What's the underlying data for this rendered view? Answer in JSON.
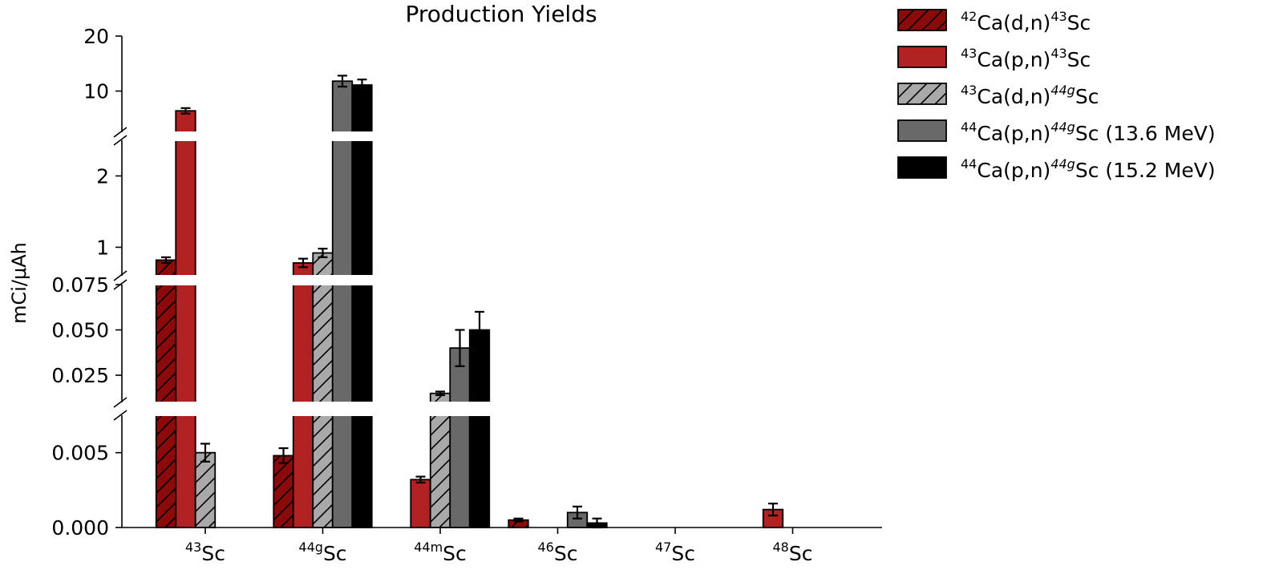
{
  "chart_data": {
    "type": "bar",
    "title": "Production Yields",
    "ylabel": "mCi/μAh",
    "xlabel": "",
    "categories": [
      {
        "base": "Sc",
        "sup": "43"
      },
      {
        "base": "Sc",
        "sup": "44g"
      },
      {
        "base": "Sc",
        "sup": "44m"
      },
      {
        "base": "Sc",
        "sup": "46"
      },
      {
        "base": "Sc",
        "sup": "47"
      },
      {
        "base": "Sc",
        "sup": "48"
      }
    ],
    "y_scale": "broken axis with four segments",
    "y_segments": [
      {
        "range": [
          0,
          0.0075
        ],
        "ticks": [
          "0.000",
          "0.005"
        ]
      },
      {
        "range": [
          0.01,
          0.075
        ],
        "ticks": [
          "0.025",
          "0.050",
          "0.075"
        ]
      },
      {
        "range": [
          0.6,
          2.5
        ],
        "ticks": [
          "1",
          "2"
        ]
      },
      {
        "range": [
          2.5,
          20
        ],
        "ticks": [
          "10",
          "20"
        ]
      }
    ],
    "legend_position": "top-right, outside the plot",
    "series": [
      {
        "name": "42Ca(d,n)43Sc",
        "legend": {
          "pre": "42",
          "a": "Ca(d,n)",
          "sup2": "43",
          "b": "Sc",
          "c": ""
        },
        "color": "#8b0a0a",
        "hatch": true,
        "values": [
          0.82,
          0.0048,
          0.0,
          0.0005,
          0.0,
          0.0
        ],
        "errors": [
          0.04,
          0.0005,
          0.0,
          0.0001,
          0.0,
          0.0
        ]
      },
      {
        "name": "43Ca(p,n)43Sc",
        "legend": {
          "pre": "43",
          "a": "Ca(p,n)",
          "sup2": "43",
          "b": "Sc",
          "c": ""
        },
        "color": "#b22222",
        "hatch": false,
        "values": [
          6.4,
          0.78,
          0.0032,
          0.0,
          0.0,
          0.0012
        ],
        "errors": [
          0.5,
          0.06,
          0.0002,
          0.0,
          0.0,
          0.0004
        ]
      },
      {
        "name": "43Ca(d,n)44gSc",
        "legend": {
          "pre": "43",
          "a": "Ca(d,n)",
          "sup2": "44g",
          "b": "Sc",
          "c": ""
        },
        "color": "#a9a9a9",
        "hatch": true,
        "values": [
          0.005,
          0.92,
          0.015,
          0.0,
          0.0,
          0.0
        ],
        "errors": [
          0.0006,
          0.06,
          0.001,
          0.0,
          0.0,
          0.0
        ]
      },
      {
        "name": "44Ca(p,n)44gSc (13.6 MeV)",
        "legend": {
          "pre": "44",
          "a": "Ca(p,n)",
          "sup2": "44g",
          "b": "Sc",
          "c": " (13.6 MeV)"
        },
        "color": "#696969",
        "hatch": false,
        "values": [
          0.0,
          11.8,
          0.04,
          0.001,
          0.0,
          0.0
        ],
        "errors": [
          0.0,
          1.0,
          0.01,
          0.0004,
          0.0,
          0.0
        ]
      },
      {
        "name": "44Ca(p,n)44gSc (15.2 MeV)",
        "legend": {
          "pre": "44",
          "a": "Ca(p,n)",
          "sup2": "44g",
          "b": "Sc",
          "c": " (15.2 MeV)"
        },
        "color": "#000000",
        "hatch": false,
        "values": [
          0.0,
          11.1,
          0.05,
          0.0003,
          0.0,
          0.0
        ],
        "errors": [
          0.0,
          1.0,
          0.01,
          0.0003,
          0.0,
          0.0
        ]
      }
    ]
  }
}
